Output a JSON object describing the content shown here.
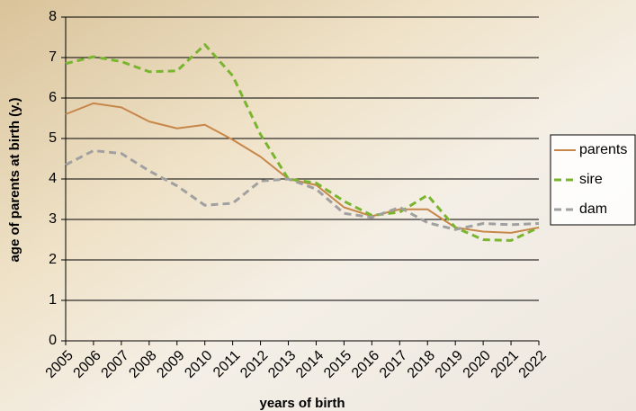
{
  "chart_data": {
    "type": "line",
    "x_label": "years of birth",
    "y_label": "age of parents at birth (y.)",
    "categories": [
      "2005",
      "2006",
      "2007",
      "2008",
      "2009",
      "2010",
      "2011",
      "2012",
      "2013",
      "2014",
      "2015",
      "2016",
      "2017",
      "2018",
      "2019",
      "2020",
      "2021",
      "2022"
    ],
    "series": [
      {
        "name": "parents",
        "color": "#c8874a",
        "dash": "solid",
        "values": [
          5.6,
          5.87,
          5.77,
          5.42,
          5.25,
          5.34,
          4.97,
          4.55,
          4.0,
          3.85,
          3.3,
          3.08,
          3.25,
          3.25,
          2.8,
          2.7,
          2.67,
          2.8
        ]
      },
      {
        "name": "sire",
        "color": "#7ab530",
        "dash": "dashed",
        "values": [
          6.85,
          7.02,
          6.9,
          6.65,
          6.67,
          7.32,
          6.55,
          5.1,
          4.0,
          3.9,
          3.45,
          3.1,
          3.18,
          3.6,
          2.8,
          2.5,
          2.48,
          2.8
        ]
      },
      {
        "name": "dam",
        "color": "#a0a0a0",
        "dash": "dashed",
        "values": [
          4.35,
          4.7,
          4.63,
          4.2,
          3.83,
          3.35,
          3.4,
          3.95,
          4.0,
          3.75,
          3.15,
          3.05,
          3.3,
          2.92,
          2.75,
          2.9,
          2.87,
          2.9
        ]
      }
    ],
    "ylim": [
      0,
      8
    ],
    "yticks": [
      0,
      1,
      2,
      3,
      4,
      5,
      6,
      7,
      8
    ],
    "grid": true,
    "legend": "right"
  }
}
